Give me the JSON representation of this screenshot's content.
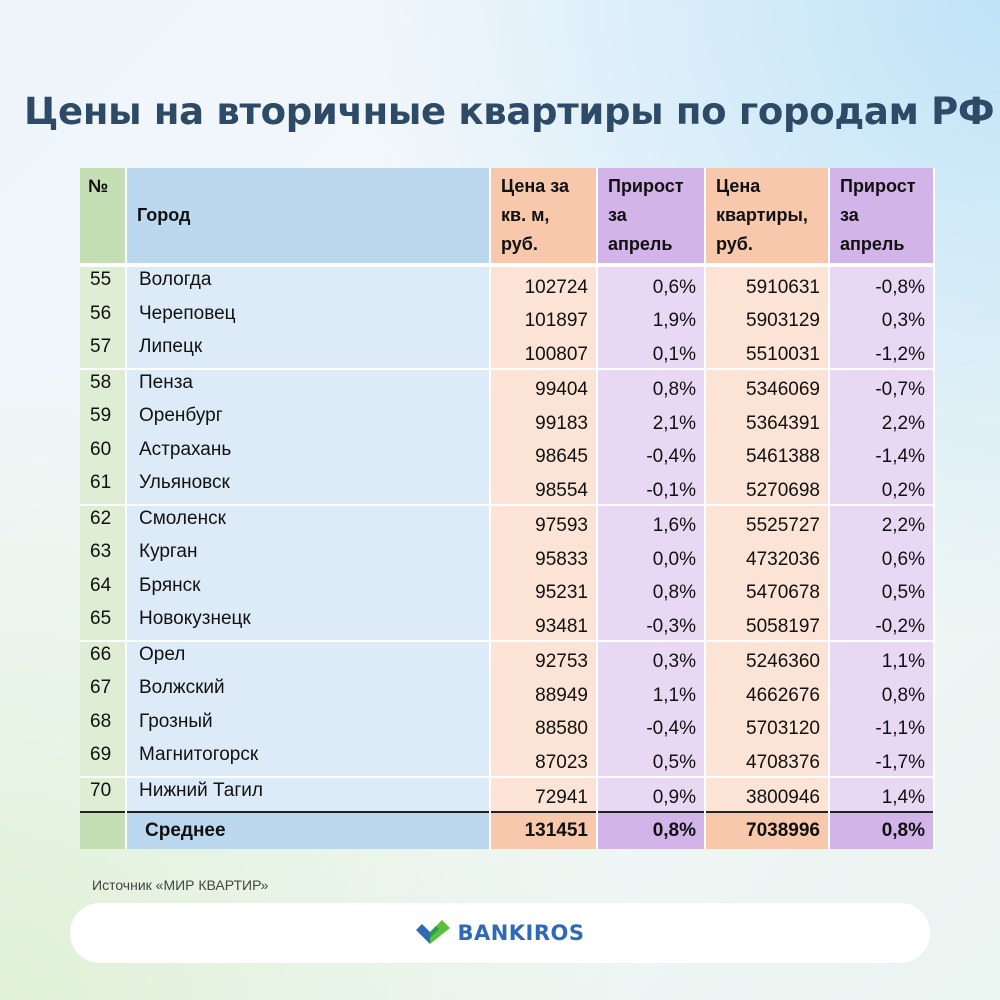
{
  "title": "Цены на вторичные квартиры по городам РФ",
  "table": {
    "headers": {
      "num": "№",
      "city": "Город",
      "price": "Цена за кв. м, руб.",
      "growth1": "Прирост за апрель",
      "apt_price": "Цена квартиры, руб.",
      "growth2": "Прирост за апрель"
    },
    "rows": [
      {
        "num": "55",
        "city": "Вологда",
        "price": "102724",
        "growth1": "0,6%",
        "apt_price": "5910631",
        "growth2": "-0,8%"
      },
      {
        "num": "56",
        "city": "Череповец",
        "price": "101897",
        "growth1": "1,9%",
        "apt_price": "5903129",
        "growth2": "0,3%"
      },
      {
        "num": "57",
        "city": "Липецк",
        "price": "100807",
        "growth1": "0,1%",
        "apt_price": "5510031",
        "growth2": "-1,2%"
      },
      {
        "num": "58",
        "city": "Пенза",
        "price": "99404",
        "growth1": "0,8%",
        "apt_price": "5346069",
        "growth2": "-0,7%"
      },
      {
        "num": "59",
        "city": "Оренбург",
        "price": "99183",
        "growth1": "2,1%",
        "apt_price": "5364391",
        "growth2": "2,2%"
      },
      {
        "num": "60",
        "city": "Астрахань",
        "price": "98645",
        "growth1": "-0,4%",
        "apt_price": "5461388",
        "growth2": "-1,4%"
      },
      {
        "num": "61",
        "city": "Ульяновск",
        "price": "98554",
        "growth1": "-0,1%",
        "apt_price": "5270698",
        "growth2": "0,2%"
      },
      {
        "num": "62",
        "city": "Смоленск",
        "price": "97593",
        "growth1": "1,6%",
        "apt_price": "5525727",
        "growth2": "2,2%"
      },
      {
        "num": "63",
        "city": "Курган",
        "price": "95833",
        "growth1": "0,0%",
        "apt_price": "4732036",
        "growth2": "0,6%"
      },
      {
        "num": "64",
        "city": "Брянск",
        "price": "95231",
        "growth1": "0,8%",
        "apt_price": "5470678",
        "growth2": "0,5%"
      },
      {
        "num": "65",
        "city": "Новокузнецк",
        "price": "93481",
        "growth1": "-0,3%",
        "apt_price": "5058197",
        "growth2": "-0,2%"
      },
      {
        "num": "66",
        "city": "Орел",
        "price": "92753",
        "growth1": "0,3%",
        "apt_price": "5246360",
        "growth2": "1,1%"
      },
      {
        "num": "67",
        "city": "Волжский",
        "price": "88949",
        "growth1": "1,1%",
        "apt_price": "4662676",
        "growth2": "0,8%"
      },
      {
        "num": "68",
        "city": "Грозный",
        "price": "88580",
        "growth1": "-0,4%",
        "apt_price": "5703120",
        "growth2": "-1,1%"
      },
      {
        "num": "69",
        "city": "Магнитогорск",
        "price": "87023",
        "growth1": "0,5%",
        "apt_price": "4708376",
        "growth2": "-1,7%"
      },
      {
        "num": "70",
        "city": "Нижний Тагил",
        "price": "72941",
        "growth1": "0,9%",
        "apt_price": "3800946",
        "growth2": "1,4%"
      }
    ],
    "average": {
      "label": "Среднее",
      "price": "131451",
      "growth1": "0,8%",
      "apt_price": "7038996",
      "growth2": "0,8%"
    }
  },
  "source": "Источник «МИР КВАРТИР»",
  "footer": {
    "brand": "BANKIROS",
    "logo_icon": "bankiros-check-logo-icon"
  },
  "colors": {
    "title": "#2d4a66",
    "num_col": "#c3dfb3",
    "city_col": "#bcd8ef",
    "price_col": "#f7c8ab",
    "growth_col": "#d2b4e8",
    "brand_blue": "#2e6ab8",
    "brand_green": "#5bbf3a"
  }
}
